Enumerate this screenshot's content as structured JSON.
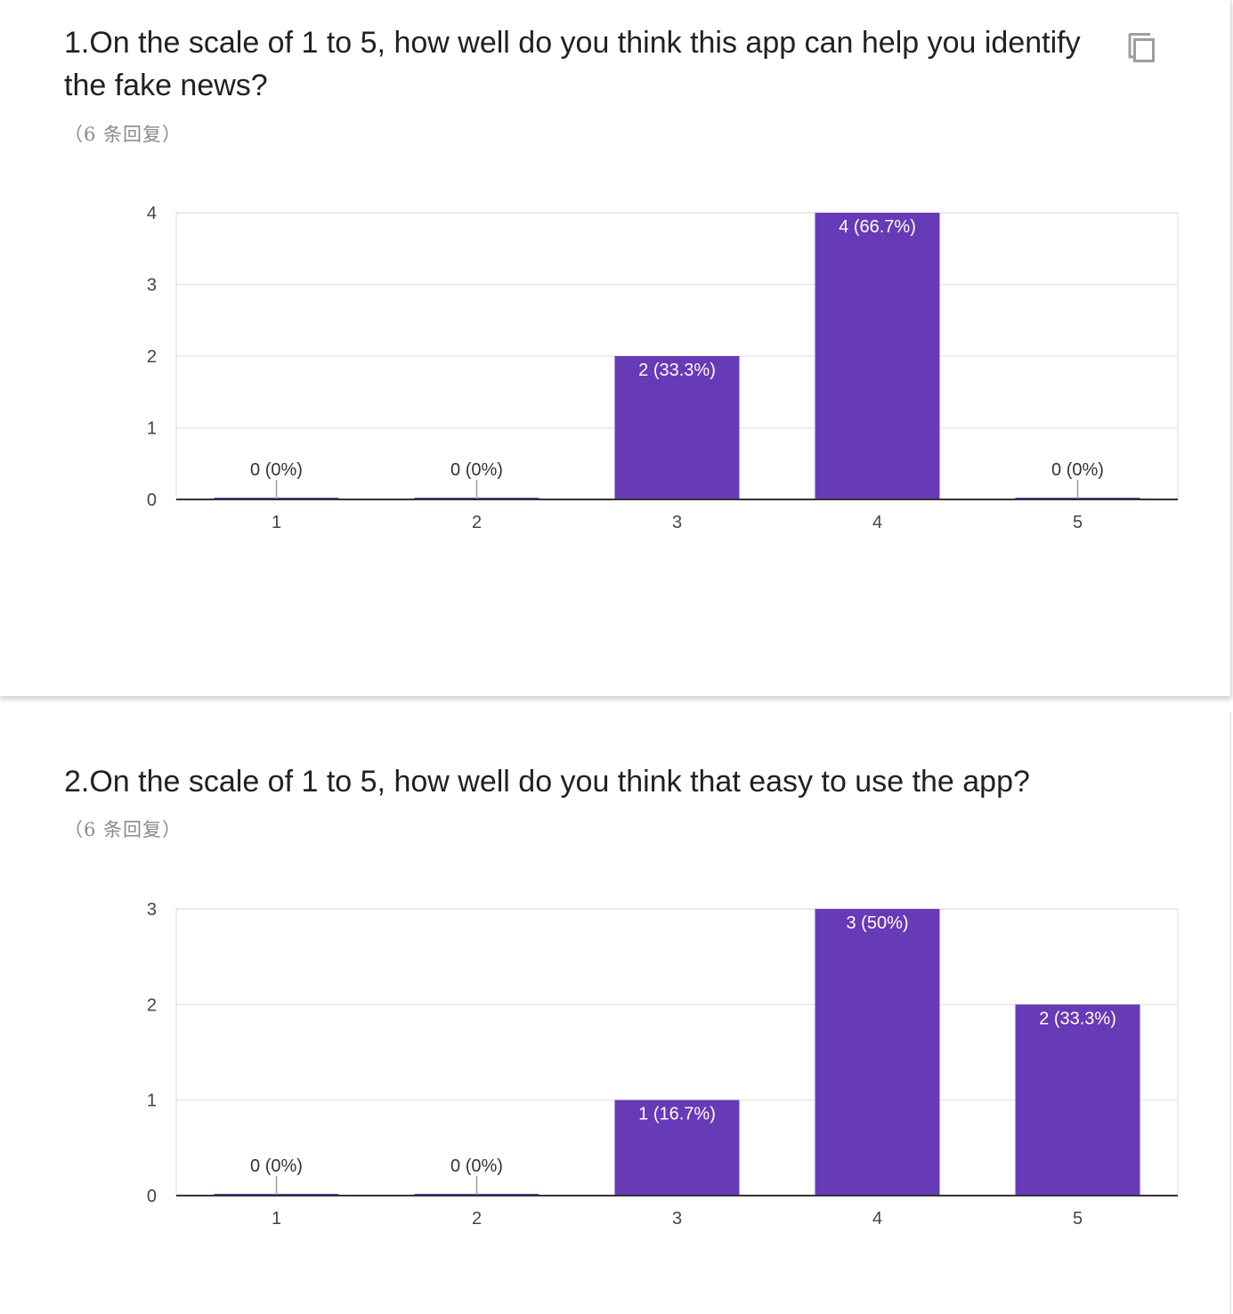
{
  "colors": {
    "bar": "#673ab7",
    "grid": "#e8e8e8",
    "axis": "#333333",
    "title": "#202124",
    "muted": "#8a8a8a"
  },
  "questions": [
    {
      "title": "1.On the scale of 1 to 5, how well do you think this app can help you identify the fake news?",
      "response_count": "（6 条回复）",
      "has_copy_button": true,
      "copy_icon": "copy-icon"
    },
    {
      "title": "2.On the scale of 1 to 5, how well do you think that easy to use the app?",
      "response_count": "（6 条回复）",
      "has_copy_button": false
    }
  ],
  "chart_data": [
    {
      "type": "bar",
      "categories": [
        "1",
        "2",
        "3",
        "4",
        "5"
      ],
      "values": [
        0,
        0,
        2,
        4,
        0
      ],
      "data_labels": [
        "0 (0%)",
        "0 (0%)",
        "2 (33.3%)",
        "4 (66.7%)",
        "0 (0%)"
      ],
      "y_ticks": [
        "0",
        "1",
        "2",
        "3",
        "4"
      ],
      "ylim": [
        0,
        4
      ],
      "grid": true,
      "legend": "none"
    },
    {
      "type": "bar",
      "categories": [
        "1",
        "2",
        "3",
        "4",
        "5"
      ],
      "values": [
        0,
        0,
        1,
        3,
        2
      ],
      "data_labels": [
        "0 (0%)",
        "0 (0%)",
        "1 (16.7%)",
        "3 (50%)",
        "2 (33.3%)"
      ],
      "y_ticks": [
        "0",
        "1",
        "2",
        "3"
      ],
      "ylim": [
        0,
        3
      ],
      "grid": true,
      "legend": "none"
    }
  ]
}
